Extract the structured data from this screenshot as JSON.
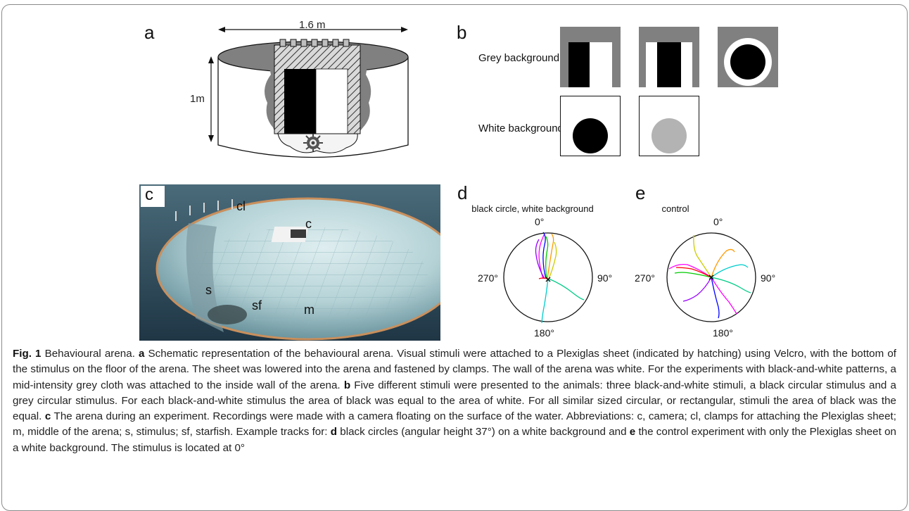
{
  "figure": {
    "panel_labels": {
      "a": "a",
      "b": "b",
      "c": "c",
      "d": "d",
      "e": "e"
    },
    "panel_a": {
      "width_label": "1.6 m",
      "height_label": "1m"
    },
    "panel_b": {
      "row1_label": "Grey background",
      "row2_label": "White background"
    },
    "panel_c": {
      "labels": {
        "camera": "c",
        "clamps": "cl",
        "stimulus": "s",
        "starfish": "sf",
        "middle": "m"
      }
    },
    "panel_d": {
      "title": "black circle, white background",
      "deg_top": "0°",
      "deg_right": "90°",
      "deg_bottom": "180°",
      "deg_left": "270°"
    },
    "panel_e": {
      "title": "control",
      "deg_top": "0°",
      "deg_right": "90°",
      "deg_bottom": "180°",
      "deg_left": "270°"
    },
    "colors": {
      "black": "#000000",
      "grey_bg": "#808080",
      "grey_circle": "#b3b3b3",
      "track_colors": [
        "#ff0000",
        "#00cc00",
        "#0000ff",
        "#ff00ff",
        "#00cccc",
        "#ff9900",
        "#cccc00",
        "#9900ff",
        "#000000"
      ]
    }
  },
  "caption": {
    "fig_label": "Fig. 1",
    "title": " Behavioural arena. ",
    "a_label": "a",
    "a_text": " Schematic representation of the behavioural arena. Visual stimuli were attached to a Plexiglas sheet (indicated by hatching) using Velcro, with the bottom of the stimulus on the floor of the arena. The sheet was lowered into the arena and fastened by clamps. The wall of the arena was white. For the experiments with black-and-white patterns, a mid-intensity grey cloth was attached to the inside wall of the arena. ",
    "b_label": "b",
    "b_text": " Five different stimuli were presented to the animals: three black-and-white stimuli, a black circular stimulus and a grey circular stimulus. For each black-and-white stimulus the area of black was equal to the area of white. For all similar sized circular, or rectangular, stimuli the area of black was the equal. ",
    "c_label": "c",
    "c_text": " The arena during an experiment. Recordings were made with a camera floating on the surface of the water. Abbreviations: c, camera; cl, clamps for attaching the Plexiglas sheet; m, middle of the arena; s, stimulus; sf, starfish. Example tracks for: ",
    "d_label": "d",
    "d_text": " black circles (angular height 37°) on a white background and ",
    "e_label": "e",
    "e_text": " the control experiment with only the Plexiglas sheet on a white background. The stimulus is located at 0°"
  }
}
